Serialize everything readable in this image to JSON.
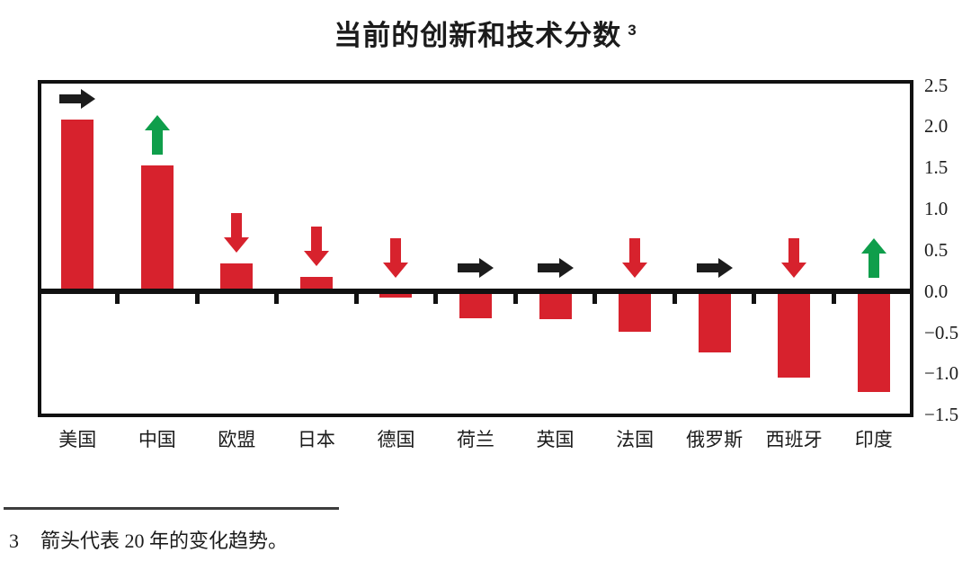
{
  "title": {
    "text": "当前的创新和技术分数",
    "superscript": "3"
  },
  "footnote": {
    "marker": "3",
    "text": "箭头代表 20 年的变化趋势。"
  },
  "colors": {
    "bar": "#d7222d",
    "trend_up": "#0f9e4b",
    "trend_down": "#d7222d",
    "trend_steady": "#1c1c1c",
    "axis": "#111111",
    "text": "#1b1b1b"
  },
  "chart_data": {
    "type": "bar",
    "title": "当前的创新和技术分数",
    "categories": [
      "美国",
      "中国",
      "欧盟",
      "日本",
      "德国",
      "荷兰",
      "英国",
      "法国",
      "俄罗斯",
      "西班牙",
      "印度"
    ],
    "values": [
      2.08,
      1.52,
      0.34,
      0.17,
      -0.08,
      -0.33,
      -0.34,
      -0.49,
      -0.74,
      -1.05,
      -1.22
    ],
    "trends": [
      "steady",
      "up",
      "down",
      "down",
      "down",
      "steady",
      "steady",
      "down",
      "steady",
      "down",
      "up"
    ],
    "trend_note": "arrows show 20-year change trend: up=green, down=red, steady=black right arrow",
    "yticks": [
      2.5,
      2.0,
      1.5,
      1.0,
      0.5,
      0.0,
      -0.5,
      -1.0,
      -1.5
    ],
    "ytick_labels": [
      "2.5",
      "2.0",
      "1.5",
      "1.0",
      "0.5",
      "0.0",
      "−0.5",
      "−1.0",
      "−1.5"
    ],
    "ylim": [
      -1.53,
      2.56
    ],
    "xlabel": "",
    "ylabel": "",
    "grid": false,
    "legend": null,
    "yaxis_side": "right"
  }
}
